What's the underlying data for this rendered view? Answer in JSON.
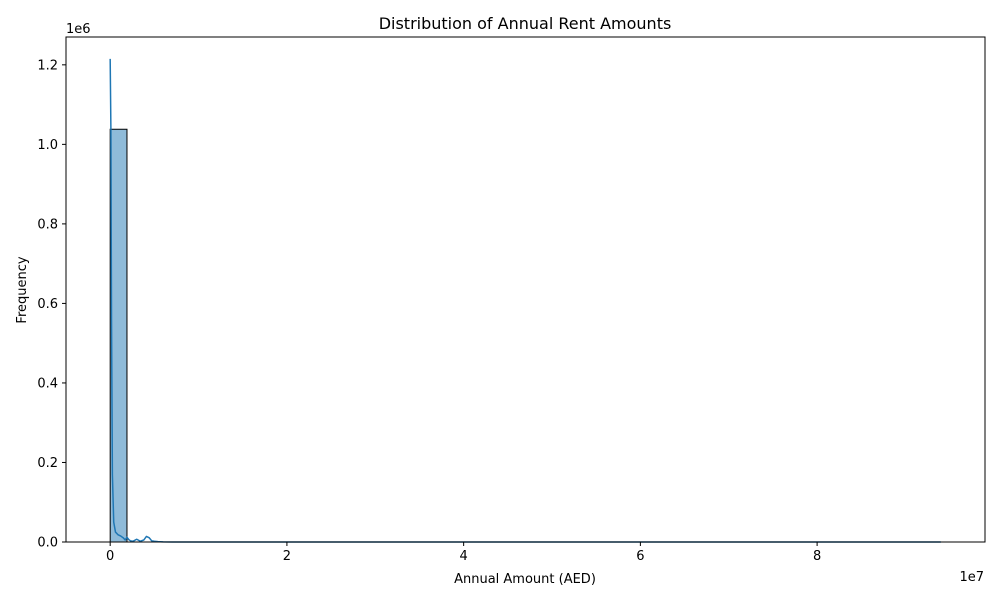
{
  "chart_data": {
    "type": "bar",
    "title": "Distribution of Annual Rent Amounts",
    "xlabel": "Annual Amount (AED)",
    "ylabel": "Frequency",
    "x_offset_label": "1e7",
    "y_offset_label": "1e6",
    "xlim": [
      -5000000,
      99000000
    ],
    "ylim": [
      0,
      1270000
    ],
    "x_ticks": [
      0,
      20000000,
      40000000,
      60000000,
      80000000
    ],
    "x_tick_labels": [
      "0",
      "2",
      "4",
      "6",
      "8"
    ],
    "y_ticks": [
      0,
      200000,
      400000,
      600000,
      800000,
      1000000,
      1200000
    ],
    "y_tick_labels": [
      "0.0",
      "0.2",
      "0.4",
      "0.6",
      "0.8",
      "1.0",
      "1.2"
    ],
    "histogram": {
      "bin_edges": [
        0,
        1900000
      ],
      "counts": [
        1038000
      ],
      "color": "#1f77b4"
    },
    "kde_line": {
      "color": "#1f77b4",
      "x": [
        0,
        80000,
        150000,
        250000,
        400000,
        600000,
        900000,
        1200000,
        1500000,
        1700000,
        1900000,
        2100000,
        2300000,
        2600000,
        3000000,
        3400000,
        3800000,
        4100000,
        4400000,
        4700000,
        5000000,
        5400000,
        6000000,
        7000000,
        8000000,
        10000000,
        20000000,
        40000000,
        60000000,
        80000000,
        94000000
      ],
      "y": [
        1215000,
        1040000,
        560000,
        170000,
        50000,
        25000,
        18000,
        15000,
        10000,
        5000,
        12000,
        6000,
        3000,
        2000,
        7000,
        2000,
        5000,
        14000,
        11000,
        3000,
        2000,
        1000,
        300,
        100,
        50,
        20,
        0,
        0,
        0,
        0,
        0
      ]
    },
    "grid": false,
    "legend": "none"
  }
}
